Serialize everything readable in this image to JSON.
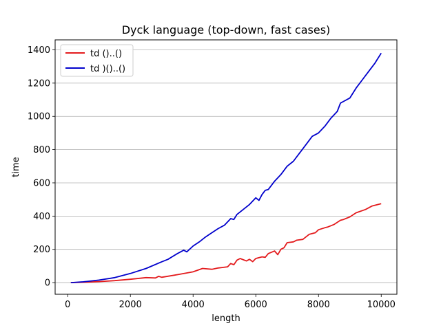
{
  "chart_data": {
    "type": "line",
    "title": "Dyck language (top-down, fast cases)",
    "xlabel": "length",
    "ylabel": "time",
    "xlim": [
      -400,
      10500
    ],
    "ylim": [
      -70,
      1460
    ],
    "xticks": [
      0,
      2000,
      4000,
      6000,
      8000,
      10000
    ],
    "xtick_labels": [
      "0",
      "2000",
      "4000",
      "6000",
      "8000",
      "10000"
    ],
    "yticks": [
      0,
      200,
      400,
      600,
      800,
      1000,
      1200,
      1400
    ],
    "ytick_labels": [
      "0",
      "200",
      "400",
      "600",
      "800",
      "1000",
      "1200",
      "1400"
    ],
    "grid": "horizontal",
    "legend_position": "upper-left",
    "series": [
      {
        "name": "td ()..()",
        "color": "#e31a1c",
        "x": [
          100,
          500,
          1000,
          1500,
          2000,
          2500,
          2800,
          2900,
          3000,
          3500,
          4000,
          4300,
          4600,
          4800,
          5100,
          5200,
          5300,
          5400,
          5500,
          5700,
          5800,
          5900,
          6000,
          6200,
          6300,
          6400,
          6600,
          6700,
          6800,
          6900,
          7000,
          7200,
          7300,
          7500,
          7700,
          7900,
          8000,
          8200,
          8300,
          8500,
          8700,
          8800,
          9000,
          9200,
          9500,
          9700,
          10000
        ],
        "values": [
          0,
          2,
          6,
          12,
          20,
          30,
          28,
          38,
          32,
          48,
          65,
          85,
          80,
          88,
          95,
          115,
          108,
          135,
          145,
          130,
          140,
          126,
          145,
          155,
          152,
          175,
          190,
          168,
          200,
          210,
          240,
          245,
          255,
          260,
          290,
          300,
          318,
          330,
          335,
          350,
          375,
          380,
          395,
          420,
          440,
          460,
          475
        ]
      },
      {
        "name": "td )()..()",
        "color": "#0000cc",
        "x": [
          100,
          500,
          1000,
          1500,
          2000,
          2500,
          3000,
          3200,
          3500,
          3700,
          3800,
          4000,
          4200,
          4400,
          4600,
          4800,
          5000,
          5200,
          5300,
          5400,
          5600,
          5800,
          6000,
          6100,
          6200,
          6300,
          6400,
          6600,
          6800,
          7000,
          7200,
          7400,
          7600,
          7800,
          8000,
          8200,
          8400,
          8600,
          8700,
          8800,
          9000,
          9200,
          9400,
          9600,
          9800,
          10000
        ],
        "values": [
          0,
          5,
          15,
          30,
          55,
          85,
          125,
          140,
          175,
          195,
          185,
          220,
          245,
          275,
          300,
          325,
          345,
          385,
          380,
          410,
          440,
          470,
          510,
          495,
          530,
          555,
          560,
          610,
          650,
          700,
          730,
          780,
          830,
          880,
          900,
          940,
          990,
          1030,
          1080,
          1090,
          1110,
          1170,
          1220,
          1270,
          1320,
          1380
        ]
      }
    ]
  }
}
